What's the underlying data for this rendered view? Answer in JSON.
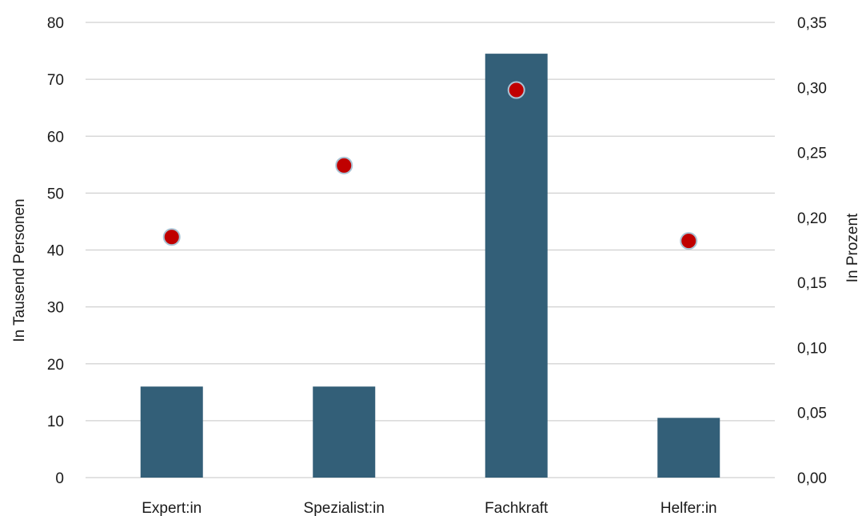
{
  "chart_data": {
    "type": "bar",
    "title": "",
    "categories": [
      "Expert:in",
      "Spezialist:in",
      "Fachkraft",
      "Helfer:in"
    ],
    "series": [
      {
        "type": "bar",
        "axis": "left",
        "values": [
          16,
          16,
          74.5,
          10.5
        ],
        "color": "#335f78"
      },
      {
        "type": "scatter",
        "axis": "right",
        "values": [
          0.185,
          0.24,
          0.298,
          0.182
        ],
        "color": "#c00000"
      }
    ],
    "ylabel_left": "In Tausend Personen",
    "ylabel_right": "In Prozent",
    "ylim_left": [
      0,
      80
    ],
    "ylim_right": [
      0,
      0.35
    ],
    "yticks_left": [
      "0",
      "10",
      "20",
      "30",
      "40",
      "50",
      "60",
      "70",
      "80"
    ],
    "yticks_right": [
      "0,00",
      "0,05",
      "0,10",
      "0,15",
      "0,20",
      "0,25",
      "0,30",
      "0,35"
    ],
    "grid": true,
    "legend": "none"
  }
}
